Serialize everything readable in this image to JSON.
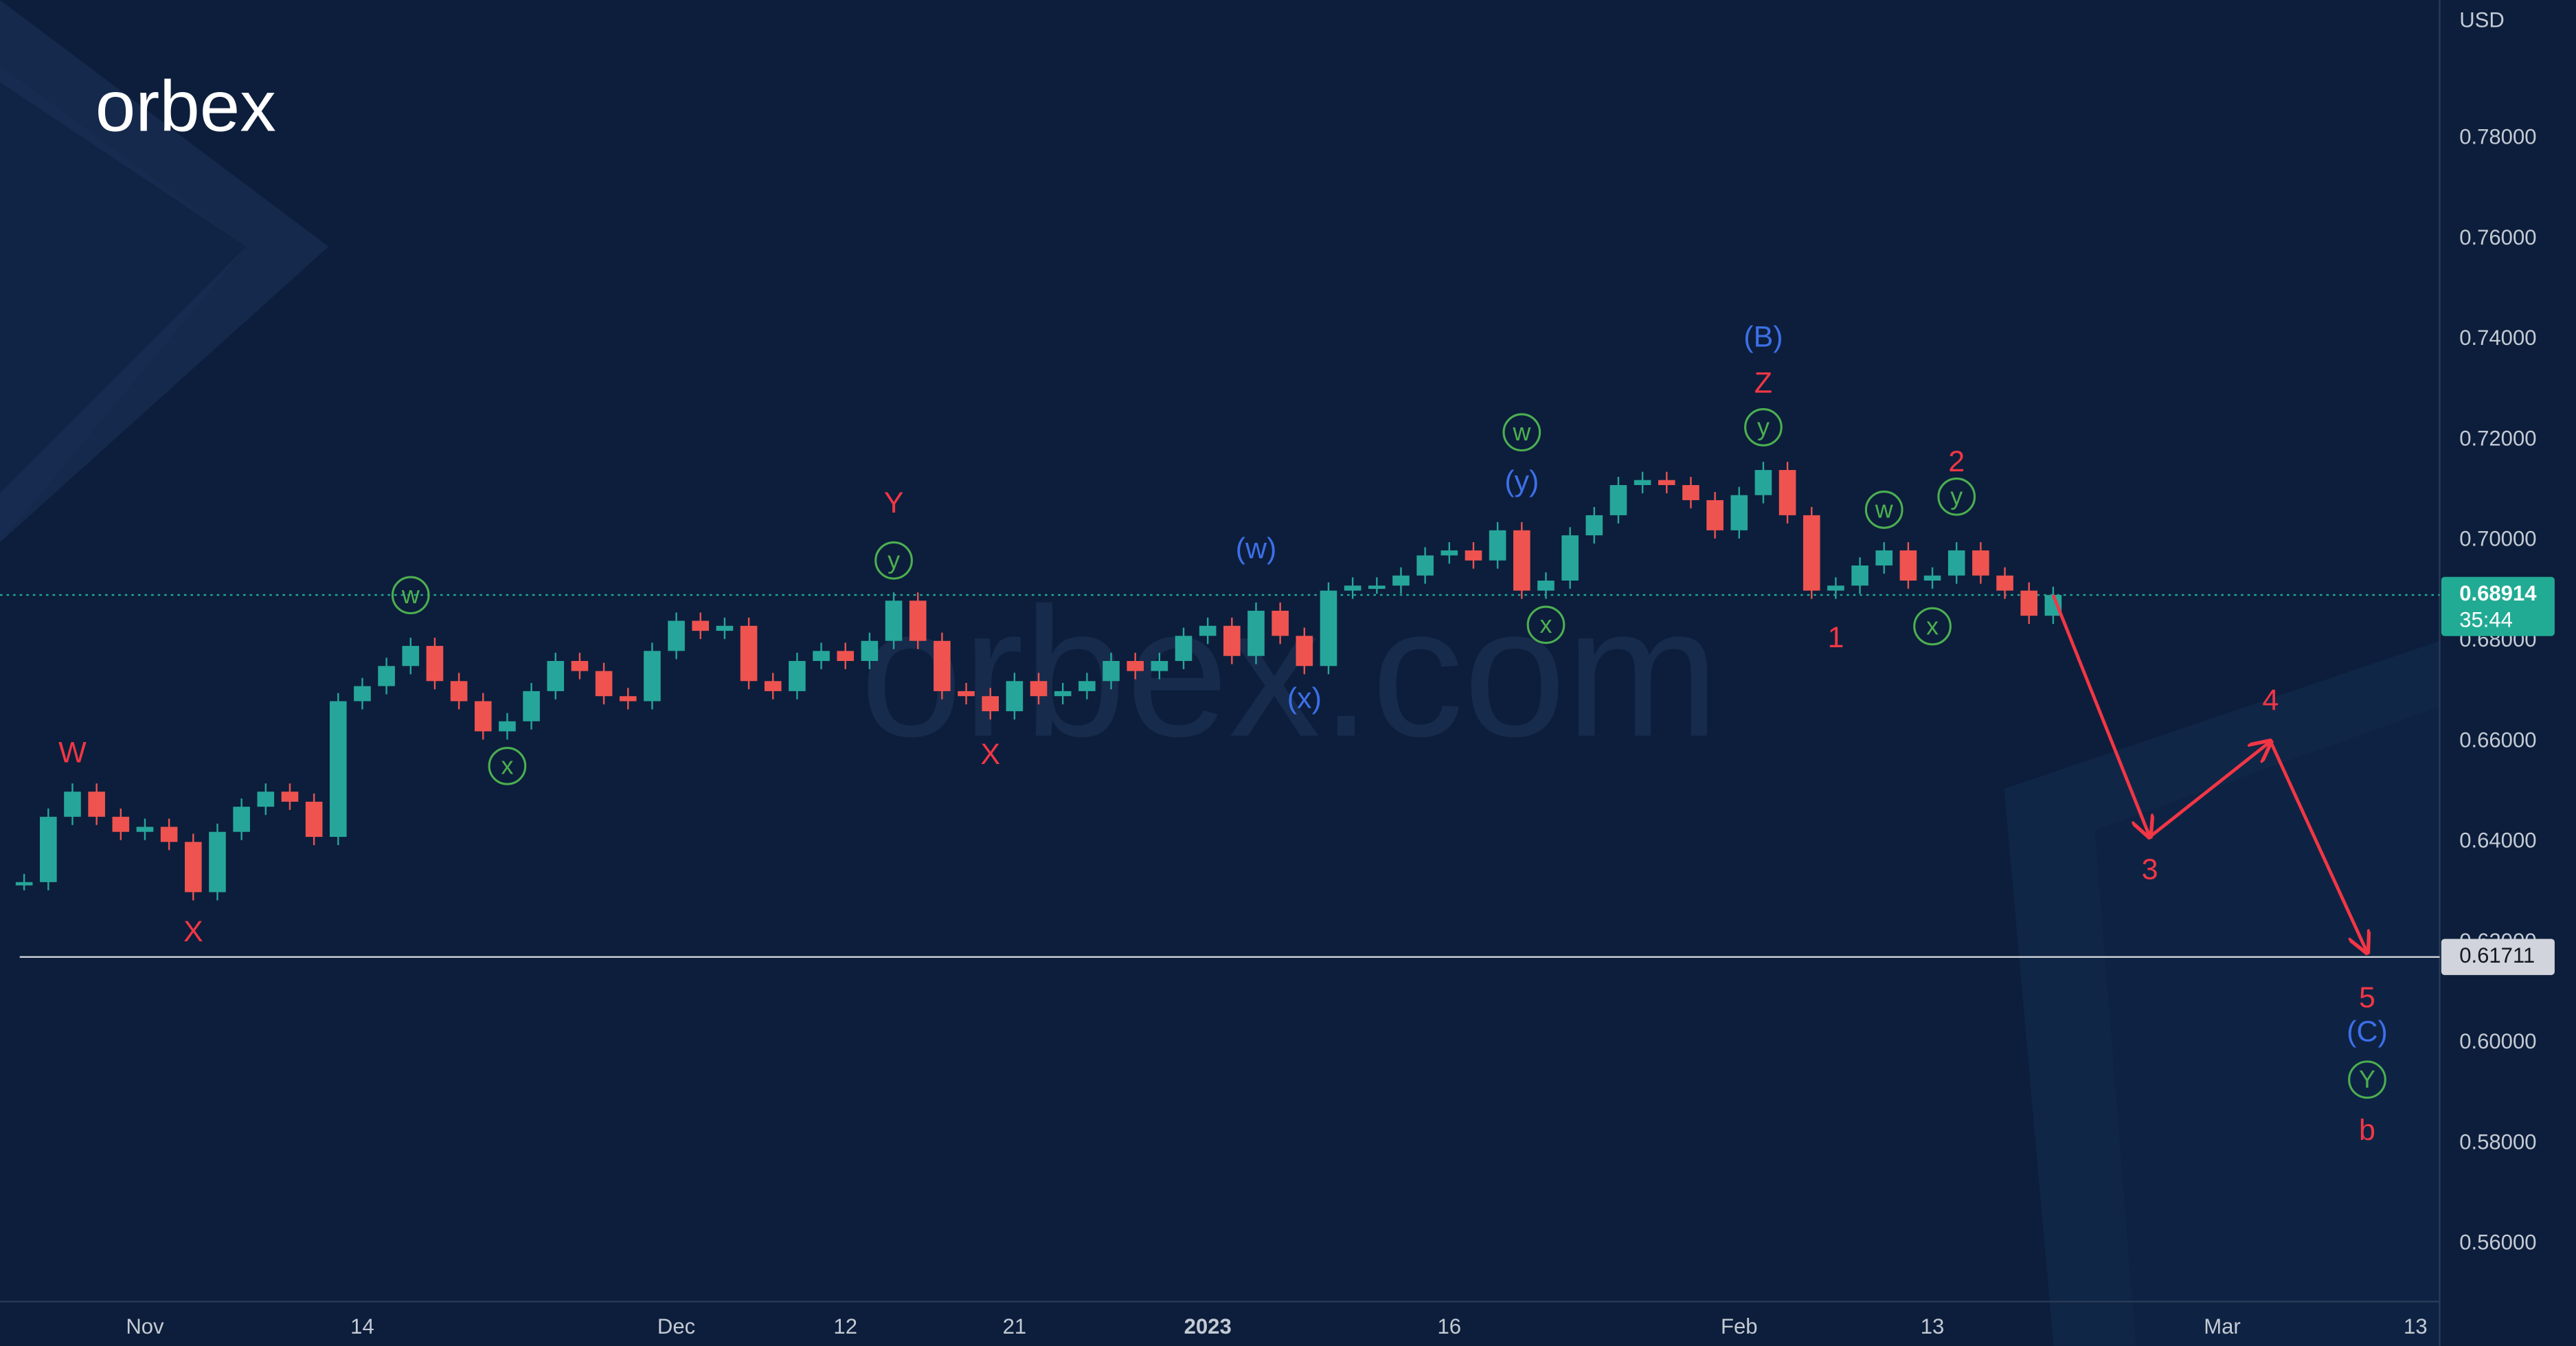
{
  "brand": "orbex",
  "watermark": "orbex.com",
  "chart_data": {
    "type": "candlestick",
    "currency": "USD",
    "x": [
      "2022-10-25",
      "2022-10-26",
      "2022-10-27",
      "2022-10-28",
      "2022-10-31",
      "2022-11-01",
      "2022-11-02",
      "2022-11-03",
      "2022-11-04",
      "2022-11-07",
      "2022-11-08",
      "2022-11-09",
      "2022-11-10",
      "2022-11-11",
      "2022-11-14",
      "2022-11-15",
      "2022-11-16",
      "2022-11-17",
      "2022-11-18",
      "2022-11-21",
      "2022-11-22",
      "2022-11-23",
      "2022-11-24",
      "2022-11-25",
      "2022-11-28",
      "2022-11-29",
      "2022-11-30",
      "2022-12-01",
      "2022-12-02",
      "2022-12-05",
      "2022-12-06",
      "2022-12-07",
      "2022-12-08",
      "2022-12-09",
      "2022-12-12",
      "2022-12-13",
      "2022-12-14",
      "2022-12-15",
      "2022-12-16",
      "2022-12-19",
      "2022-12-20",
      "2022-12-21",
      "2022-12-22",
      "2022-12-23",
      "2022-12-26",
      "2022-12-27",
      "2022-12-28",
      "2022-12-29",
      "2022-12-30",
      "2023-01-02",
      "2023-01-03",
      "2023-01-04",
      "2023-01-05",
      "2023-01-06",
      "2023-01-09",
      "2023-01-10",
      "2023-01-11",
      "2023-01-12",
      "2023-01-13",
      "2023-01-16",
      "2023-01-17",
      "2023-01-18",
      "2023-01-19",
      "2023-01-20",
      "2023-01-23",
      "2023-01-24",
      "2023-01-25",
      "2023-01-26",
      "2023-01-27",
      "2023-01-30",
      "2023-01-31",
      "2023-02-01",
      "2023-02-02",
      "2023-02-03",
      "2023-02-06",
      "2023-02-07",
      "2023-02-08",
      "2023-02-09",
      "2023-02-10",
      "2023-02-13",
      "2023-02-14",
      "2023-02-15",
      "2023-02-16",
      "2023-02-17",
      "2023-02-20"
    ],
    "values": [
      0.632,
      0.645,
      0.65,
      0.645,
      0.642,
      0.643,
      0.64,
      0.63,
      0.642,
      0.647,
      0.65,
      0.648,
      0.641,
      0.668,
      0.671,
      0.675,
      0.679,
      0.672,
      0.668,
      0.662,
      0.664,
      0.67,
      0.676,
      0.674,
      0.669,
      0.668,
      0.678,
      0.684,
      0.682,
      0.683,
      0.672,
      0.67,
      0.676,
      0.678,
      0.676,
      0.68,
      0.688,
      0.68,
      0.67,
      0.669,
      0.666,
      0.672,
      0.669,
      0.67,
      0.672,
      0.676,
      0.674,
      0.676,
      0.681,
      0.683,
      0.677,
      0.686,
      0.681,
      0.675,
      0.69,
      0.691,
      0.691,
      0.693,
      0.697,
      0.698,
      0.696,
      0.702,
      0.69,
      0.692,
      0.701,
      0.705,
      0.711,
      0.712,
      0.711,
      0.708,
      0.702,
      0.709,
      0.714,
      0.705,
      0.69,
      0.691,
      0.695,
      0.698,
      0.692,
      0.693,
      0.698,
      0.693,
      0.69,
      0.685,
      0.68914
    ],
    "up_color": "#26a69a",
    "down_color": "#ef5350",
    "countdown": "35:44",
    "price_color": "#22ab94",
    "xlim": [
      "2022-10-24",
      "2023-03-14"
    ],
    "xticks": [
      {
        "value": "2022-11-01",
        "label": "Nov"
      },
      {
        "value": "2022-11-14",
        "label": "14"
      },
      {
        "value": "2022-12-01",
        "label": "Dec"
      },
      {
        "value": "2022-12-12",
        "label": "12"
      },
      {
        "value": "2022-12-21",
        "label": "21"
      },
      {
        "value": "2023-01-02",
        "label": "2023"
      },
      {
        "value": "2023-01-16",
        "label": "16"
      },
      {
        "value": "2023-02-01",
        "label": "Feb"
      },
      {
        "value": "2023-02-13",
        "label": "13"
      },
      {
        "value": "2023-03-01",
        "label": "Mar"
      },
      {
        "value": "2023-03-13",
        "label": "13"
      }
    ],
    "ylim": [
      0.5492,
      0.8075
    ],
    "yticks": [
      {
        "value": 0.56,
        "label": "0.56000"
      },
      {
        "value": 0.58,
        "label": "0.58000"
      },
      {
        "value": 0.6,
        "label": "0.60000"
      },
      {
        "value": 0.62,
        "label": "0.62000"
      },
      {
        "value": 0.64,
        "label": "0.64000"
      },
      {
        "value": 0.66,
        "label": "0.66000"
      },
      {
        "value": 0.68,
        "label": "0.68000"
      },
      {
        "value": 0.7,
        "label": "0.70000"
      },
      {
        "value": 0.72,
        "label": "0.72000"
      },
      {
        "value": 0.74,
        "label": "0.74000"
      },
      {
        "value": 0.76,
        "label": "0.76000"
      },
      {
        "value": 0.78,
        "label": "0.78000"
      }
    ],
    "grid": false,
    "level": 0.61711,
    "forecast": {
      "color": "#f23645",
      "x": [
        "2023-02-24",
        "2023-03-03",
        "2023-03-09"
      ],
      "values": [
        0.641,
        0.66,
        0.618
      ]
    },
    "annotations": [
      {
        "text": "W",
        "color": "#f23645",
        "circled": false,
        "x": "2022-10-27",
        "y": 0.6577
      },
      {
        "text": "X",
        "color": "#f23645",
        "circled": false,
        "x": "2022-11-03",
        "y": 0.6221
      },
      {
        "text": "w",
        "color": "#4caf50",
        "circled": true,
        "x": "2022-11-16",
        "y": 0.6891
      },
      {
        "text": "x",
        "color": "#4caf50",
        "circled": true,
        "x": "2022-11-22",
        "y": 0.6551
      },
      {
        "text": "Y",
        "color": "#f23645",
        "circled": false,
        "x": "2022-12-14",
        "y": 0.7074
      },
      {
        "text": "y",
        "color": "#4caf50",
        "circled": true,
        "x": "2022-12-14",
        "y": 0.696
      },
      {
        "text": "X",
        "color": "#f23645",
        "circled": false,
        "x": "2022-12-20",
        "y": 0.6574
      },
      {
        "text": "(w)",
        "color": "#3d6fe8",
        "circled": false,
        "x": "2023-01-04",
        "y": 0.6983
      },
      {
        "text": "(x)",
        "color": "#3d6fe8",
        "circled": false,
        "x": "2023-01-06",
        "y": 0.6685
      },
      {
        "text": "w",
        "color": "#4caf50",
        "circled": true,
        "x": "2023-01-19",
        "y": 0.7215
      },
      {
        "text": "(y)",
        "color": "#3d6fe8",
        "circled": false,
        "x": "2023-01-19",
        "y": 0.7117
      },
      {
        "text": "x",
        "color": "#4caf50",
        "circled": true,
        "x": "2023-01-20",
        "y": 0.6832
      },
      {
        "text": "(B)",
        "color": "#3d6fe8",
        "circled": false,
        "x": "2023-02-02",
        "y": 0.7404
      },
      {
        "text": "Z",
        "color": "#f23645",
        "circled": false,
        "x": "2023-02-02",
        "y": 0.7313
      },
      {
        "text": "y",
        "color": "#4caf50",
        "circled": true,
        "x": "2023-02-02",
        "y": 0.7225
      },
      {
        "text": "1",
        "color": "#f23645",
        "circled": false,
        "x": "2023-02-07",
        "y": 0.6806
      },
      {
        "text": "w",
        "color": "#4caf50",
        "circled": true,
        "x": "2023-02-09",
        "y": 0.7061
      },
      {
        "text": "x",
        "color": "#4caf50",
        "circled": true,
        "x": "2023-02-13",
        "y": 0.6829
      },
      {
        "text": "2",
        "color": "#f23645",
        "circled": false,
        "x": "2023-02-14",
        "y": 0.7156
      },
      {
        "text": "y",
        "color": "#4caf50",
        "circled": true,
        "x": "2023-02-14",
        "y": 0.7087
      },
      {
        "text": "3",
        "color": "#f23645",
        "circled": false,
        "x": "2023-02-24",
        "y": 0.6345
      },
      {
        "text": "4",
        "color": "#f23645",
        "circled": false,
        "x": "2023-03-03",
        "y": 0.6682
      },
      {
        "text": "5",
        "color": "#f23645",
        "circled": false,
        "x": "2023-03-09",
        "y": 0.609
      },
      {
        "text": "(C)",
        "color": "#3d6fe8",
        "circled": false,
        "x": "2023-03-09",
        "y": 0.6022
      },
      {
        "text": "Y",
        "color": "#4caf50",
        "circled": true,
        "x": "2023-03-09",
        "y": 0.5927
      },
      {
        "text": "b",
        "color": "#f23645",
        "circled": false,
        "x": "2023-03-09",
        "y": 0.5826
      }
    ]
  }
}
